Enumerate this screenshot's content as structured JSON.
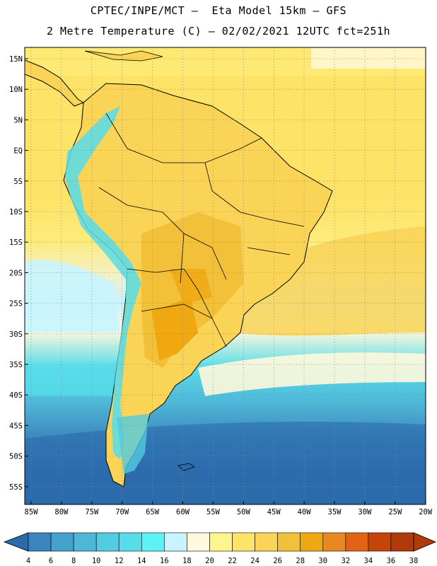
{
  "header": {
    "line1": "CPTEC/INPE/MCT –  Eta Model 15km – GFS",
    "line2": "2 Metre Temperature (C) – 02/02/2021 12UTC fct=251h"
  },
  "map": {
    "lat_labels": [
      "15N",
      "10N",
      "5N",
      "EQ",
      "5S",
      "10S",
      "15S",
      "20S",
      "25S",
      "30S",
      "35S",
      "40S",
      "45S",
      "50S",
      "55S"
    ],
    "lon_labels": [
      "85W",
      "80W",
      "75W",
      "70W",
      "65W",
      "60W",
      "55W",
      "50W",
      "45W",
      "40W",
      "35W",
      "30W",
      "25W",
      "20W"
    ]
  },
  "colorbar": {
    "tick_labels": [
      "4",
      "6",
      "8",
      "10",
      "12",
      "14",
      "16",
      "18",
      "20",
      "22",
      "24",
      "26",
      "28",
      "30",
      "32",
      "34",
      "36",
      "38"
    ],
    "colors": [
      "#2c6bab",
      "#3a85bd",
      "#43a1cc",
      "#4eb6d7",
      "#53cbe0",
      "#58dcea",
      "#5df3f6",
      "#c8f4ff",
      "#fff8dc",
      "#fff58f",
      "#fde368",
      "#f9d456",
      "#f2c139",
      "#efa810",
      "#e98722",
      "#e26313",
      "#c4440a",
      "#b03a0a"
    ]
  }
}
